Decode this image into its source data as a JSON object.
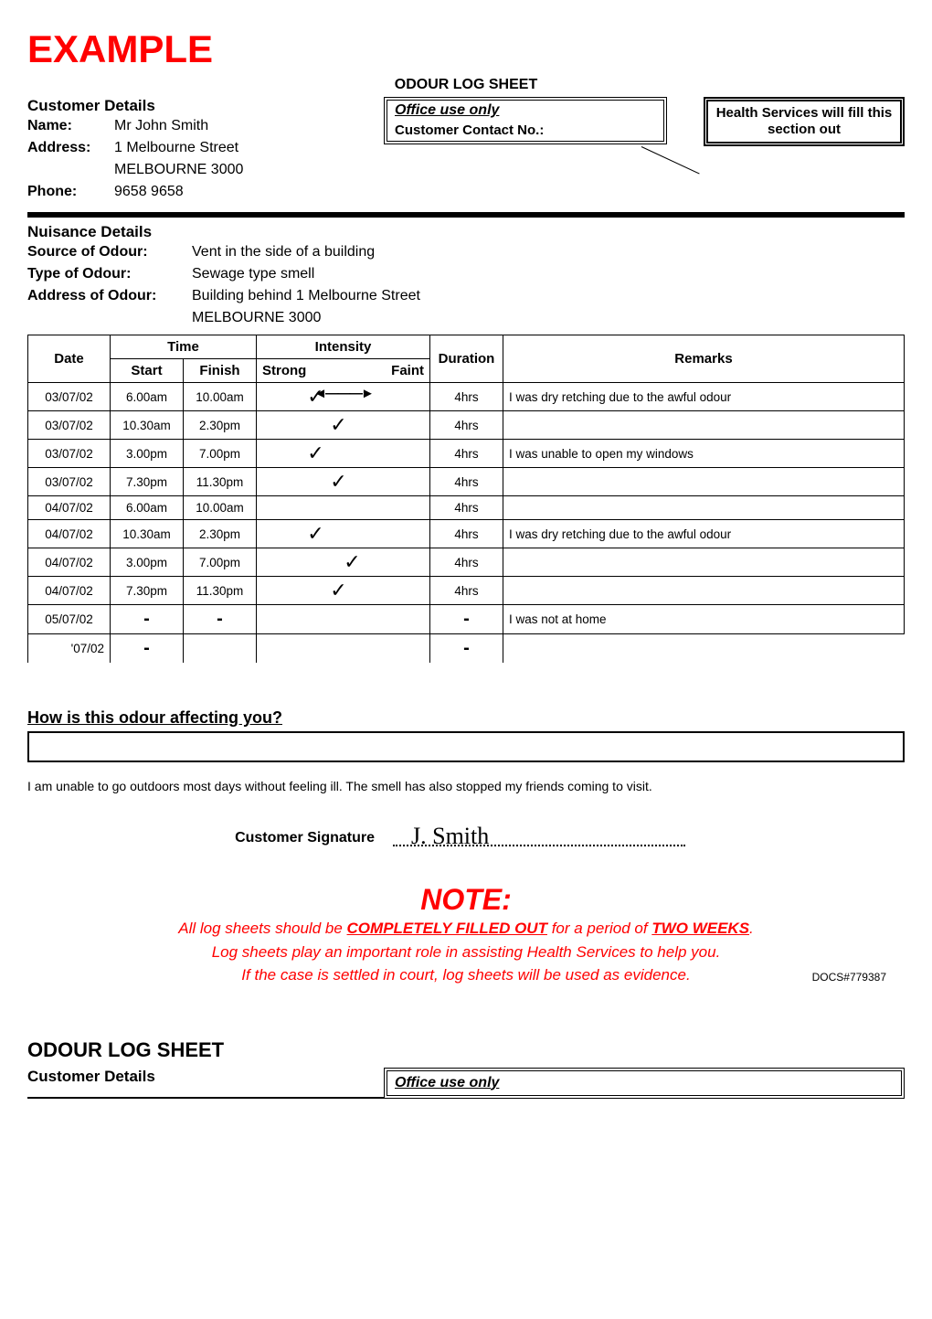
{
  "example_label": "EXAMPLE",
  "sheet_title": "ODOUR LOG SHEET",
  "callout_text": "Health Services will fill this section out",
  "customer_details_heading": "Customer Details",
  "office_use_only": "Office use only",
  "name_label": "Name:",
  "name_value": "Mr John Smith",
  "contact_no_label": "Customer Contact No.:",
  "address_label": "Address:",
  "address_line1": "1 Melbourne Street",
  "address_line2": "MELBOURNE  3000",
  "phone_label": "Phone:",
  "phone_value": "9658 9658",
  "nuisance_heading": "Nuisance Details",
  "source_label": "Source of Odour:",
  "source_value": "Vent in the side of a building",
  "type_label": "Type of Odour:",
  "type_value": "Sewage type smell",
  "odour_addr_label": "Address of Odour:",
  "odour_addr1": "Building behind 1 Melbourne Street",
  "odour_addr2": "MELBOURNE  3000",
  "th_date": "Date",
  "th_time": "Time",
  "th_start": "Start",
  "th_finish": "Finish",
  "th_intensity": "Intensity",
  "th_strong": "Strong",
  "th_faint": "Faint",
  "th_duration": "Duration",
  "th_remarks": "Remarks",
  "rows": [
    {
      "date": "03/07/02",
      "start": "6.00am",
      "finish": "10.00am",
      "tick": "strong",
      "arrow": true,
      "duration": "4hrs",
      "remarks": "I was dry retching due to the awful odour"
    },
    {
      "date": "03/07/02",
      "start": "10.30am",
      "finish": "2.30pm",
      "tick": "mid",
      "arrow": false,
      "duration": "4hrs",
      "remarks": ""
    },
    {
      "date": "03/07/02",
      "start": "3.00pm",
      "finish": "7.00pm",
      "tick": "strong",
      "arrow": false,
      "duration": "4hrs",
      "remarks": "I was unable to open my windows"
    },
    {
      "date": "03/07/02",
      "start": "7.30pm",
      "finish": "11.30pm",
      "tick": "mid",
      "arrow": false,
      "duration": "4hrs",
      "remarks": ""
    },
    {
      "date": "04/07/02",
      "start": "6.00am",
      "finish": "10.00am",
      "tick": "",
      "arrow": false,
      "duration": "4hrs",
      "remarks": ""
    },
    {
      "date": "04/07/02",
      "start": "10.30am",
      "finish": "2.30pm",
      "tick": "strong",
      "arrow": false,
      "duration": "4hrs",
      "remarks": "I was dry retching due to the awful odour"
    },
    {
      "date": "04/07/02",
      "start": "3.00pm",
      "finish": "7.00pm",
      "tick": "midr",
      "arrow": false,
      "duration": "4hrs",
      "remarks": ""
    },
    {
      "date": "04/07/02",
      "start": "7.30pm",
      "finish": "11.30pm",
      "tick": "mid",
      "arrow": false,
      "duration": "4hrs",
      "remarks": ""
    },
    {
      "date": "05/07/02",
      "start": "-",
      "finish": "-",
      "tick": "",
      "arrow": false,
      "duration": "-",
      "remarks": "I was not at home"
    }
  ],
  "cut_row_date": "'07/02",
  "affect_heading": "How is this odour affecting you?",
  "affect_text": "I am unable to go outdoors most days without feeling ill. The smell has also stopped my friends coming to visit.",
  "sig_label": "Customer Signature",
  "sig_script": "J. Smith",
  "note_title": "NOTE:",
  "note_line1_a": "All log sheets should be ",
  "note_line1_b": "COMPLETELY FILLED OUT",
  "note_line1_c": " for a period of ",
  "note_line1_d": "TWO WEEKS",
  "note_line1_e": ".",
  "note_line2": "Log sheets play an important role in assisting Health Services to help you.",
  "note_line3": "If the case is settled in court, log sheets will be used as evidence.",
  "docs_code": "DOCS#779387",
  "second_title": "ODOUR LOG SHEET",
  "second_cust": "Customer Details",
  "second_office": "Office use only",
  "colors": {
    "red": "#ff0000",
    "black": "#000000",
    "white": "#ffffff"
  }
}
